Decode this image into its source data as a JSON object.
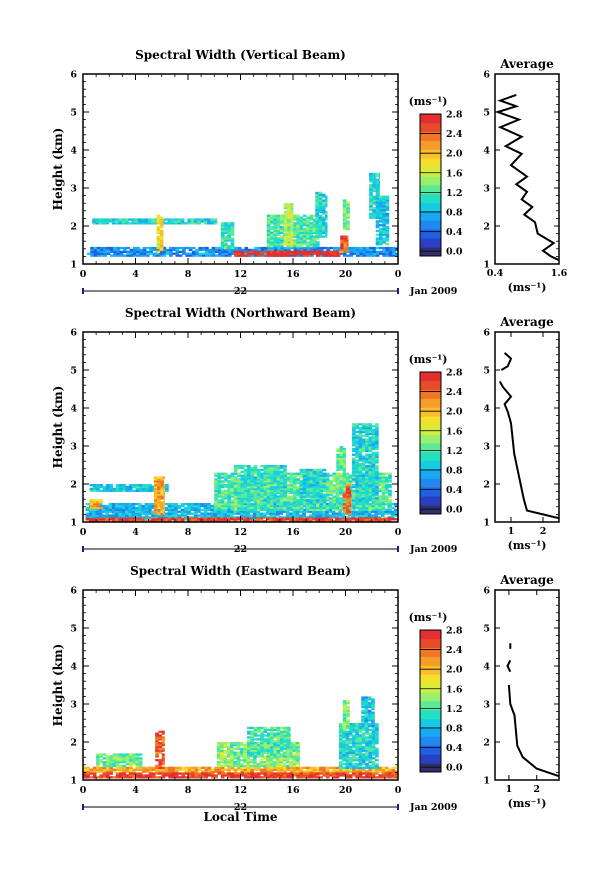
{
  "chart_data": [
    {
      "type": "heatmap",
      "title": "Spectral Width (Vertical Beam)",
      "ylabel": "Height (km)",
      "xlabel": "",
      "x_ticks": [
        "0",
        "4",
        "8",
        "12",
        "16",
        "20",
        "0"
      ],
      "y_ticks": [
        "1",
        "2",
        "3",
        "4",
        "5",
        "6"
      ],
      "xlim": [
        0,
        24
      ],
      "ylim": [
        1,
        6
      ],
      "date_day": "22",
      "date_label": "Jan 2009",
      "colorbar": {
        "unit": "(ms⁻¹)",
        "ticks": [
          "0.0",
          "0.4",
          "0.8",
          "1.2",
          "1.6",
          "2.0",
          "2.4",
          "2.8"
        ],
        "range": [
          0,
          2.9
        ]
      },
      "regions": [
        {
          "x": [
            0.3,
            24
          ],
          "y": [
            1.2,
            1.45
          ],
          "value": 0.7
        },
        {
          "x": [
            0.7,
            10.2
          ],
          "y": [
            2.05,
            2.2
          ],
          "value": 1.1
        },
        {
          "x": [
            5.6,
            6.1
          ],
          "y": [
            1.3,
            2.3
          ],
          "value": 1.9
        },
        {
          "x": [
            10.5,
            11.5
          ],
          "y": [
            1.4,
            2.1
          ],
          "value": 1.2
        },
        {
          "x": [
            11.5,
            19.6
          ],
          "y": [
            1.2,
            1.35
          ],
          "value": 2.9
        },
        {
          "x": [
            14,
            18
          ],
          "y": [
            1.45,
            2.3
          ],
          "value": 1.3
        },
        {
          "x": [
            15.3,
            16
          ],
          "y": [
            1.5,
            2.6
          ],
          "value": 1.7
        },
        {
          "x": [
            17.7,
            18.6
          ],
          "y": [
            1.7,
            2.9
          ],
          "value": 1.1
        },
        {
          "x": [
            19.6,
            20.2
          ],
          "y": [
            1.3,
            1.75
          ],
          "value": 2.6
        },
        {
          "x": [
            19.8,
            20.3
          ],
          "y": [
            1.9,
            2.7
          ],
          "value": 1.4
        },
        {
          "x": [
            21.8,
            22.6
          ],
          "y": [
            2.2,
            3.4
          ],
          "value": 1.1
        },
        {
          "x": [
            22.3,
            23.3
          ],
          "y": [
            1.5,
            2.8
          ],
          "value": 1.0
        }
      ],
      "average": {
        "title": "Average",
        "x_ticks": [
          "0.4",
          "1.6"
        ],
        "xlim": [
          0.4,
          1.6
        ],
        "ylim": [
          1,
          6
        ],
        "y_ticks": [
          "1",
          "2",
          "3",
          "4",
          "5",
          "6"
        ],
        "xlabel": "(ms⁻¹)",
        "profile": [
          {
            "x": 1.6,
            "y": 1.1
          },
          {
            "x": 1.45,
            "y": 1.2
          },
          {
            "x": 1.3,
            "y": 1.35
          },
          {
            "x": 1.5,
            "y": 1.55
          },
          {
            "x": 1.2,
            "y": 1.8
          },
          {
            "x": 1.15,
            "y": 2.1
          },
          {
            "x": 0.95,
            "y": 2.3
          },
          {
            "x": 1.1,
            "y": 2.5
          },
          {
            "x": 0.9,
            "y": 2.7
          },
          {
            "x": 1.0,
            "y": 2.9
          },
          {
            "x": 0.8,
            "y": 3.1
          },
          {
            "x": 1.0,
            "y": 3.3
          },
          {
            "x": 0.7,
            "y": 3.6
          },
          {
            "x": 0.9,
            "y": 3.9
          },
          {
            "x": 0.6,
            "y": 4.1
          },
          {
            "x": 0.9,
            "y": 4.35
          },
          {
            "x": 0.5,
            "y": 4.6
          },
          {
            "x": 0.85,
            "y": 4.8
          },
          {
            "x": 0.45,
            "y": 5.0
          },
          {
            "x": 0.8,
            "y": 5.15
          },
          {
            "x": 0.5,
            "y": 5.3
          },
          {
            "x": 0.8,
            "y": 5.45
          }
        ]
      }
    },
    {
      "type": "heatmap",
      "title": "Spectral Width (Northward Beam)",
      "ylabel": "Height (km)",
      "xlabel": "",
      "x_ticks": [
        "0",
        "4",
        "8",
        "12",
        "16",
        "20",
        "0"
      ],
      "y_ticks": [
        "1",
        "2",
        "3",
        "4",
        "5",
        "6"
      ],
      "xlim": [
        0,
        24
      ],
      "ylim": [
        1,
        6
      ],
      "date_day": "22",
      "date_label": "Jan 2009",
      "colorbar": {
        "unit": "(ms⁻¹)",
        "ticks": [
          "0.0",
          "0.4",
          "0.8",
          "1.2",
          "1.6",
          "2.0",
          "2.4",
          "2.8"
        ],
        "range": [
          0,
          2.9
        ]
      },
      "regions": [
        {
          "x": [
            0.2,
            24
          ],
          "y": [
            1.05,
            1.5
          ],
          "value": 0.9
        },
        {
          "x": [
            0.2,
            24
          ],
          "y": [
            1.0,
            1.12
          ],
          "value": 2.7
        },
        {
          "x": [
            0.5,
            6.5
          ],
          "y": [
            1.8,
            2.0
          ],
          "value": 1.0
        },
        {
          "x": [
            0.5,
            1.5
          ],
          "y": [
            1.35,
            1.6
          ],
          "value": 2.2
        },
        {
          "x": [
            5.4,
            6.2
          ],
          "y": [
            1.2,
            2.2
          ],
          "value": 2.2
        },
        {
          "x": [
            10,
            23.5
          ],
          "y": [
            1.3,
            2.3
          ],
          "value": 1.3
        },
        {
          "x": [
            11.5,
            15.5
          ],
          "y": [
            1.5,
            2.5
          ],
          "value": 1.2
        },
        {
          "x": [
            16.5,
            18.5
          ],
          "y": [
            1.5,
            2.4
          ],
          "value": 1.1
        },
        {
          "x": [
            19.8,
            20.4
          ],
          "y": [
            1.2,
            2.0
          ],
          "value": 2.5
        },
        {
          "x": [
            20.5,
            22.5
          ],
          "y": [
            1.5,
            3.6
          ],
          "value": 1.1
        },
        {
          "x": [
            19.3,
            20.0
          ],
          "y": [
            1.8,
            3.0
          ],
          "value": 1.4
        }
      ],
      "average": {
        "title": "Average",
        "x_ticks": [
          "1",
          "2"
        ],
        "xlim": [
          0.5,
          2.5
        ],
        "ylim": [
          1,
          6
        ],
        "y_ticks": [
          "1",
          "2",
          "3",
          "4",
          "5",
          "6"
        ],
        "xlabel": "(ms⁻¹)",
        "profile": [
          {
            "x": 2.5,
            "y": 1.1
          },
          {
            "x": 2.0,
            "y": 1.2
          },
          {
            "x": 1.5,
            "y": 1.3
          },
          {
            "x": 1.4,
            "y": 1.6
          },
          {
            "x": 1.3,
            "y": 2.0
          },
          {
            "x": 1.2,
            "y": 2.4
          },
          {
            "x": 1.1,
            "y": 2.8
          },
          {
            "x": 1.05,
            "y": 3.2
          },
          {
            "x": 1.0,
            "y": 3.6
          },
          {
            "x": 0.9,
            "y": 3.9
          },
          {
            "x": 0.8,
            "y": 4.1
          },
          {
            "x": 1.0,
            "y": 4.3
          },
          {
            "x": 0.75,
            "y": 4.55
          },
          {
            "x": 0.65,
            "y": 4.7
          }
        ],
        "profile2": [
          {
            "x": 0.7,
            "y": 5.0
          },
          {
            "x": 0.9,
            "y": 5.1
          },
          {
            "x": 1.0,
            "y": 5.3
          },
          {
            "x": 0.8,
            "y": 5.45
          }
        ]
      }
    },
    {
      "type": "heatmap",
      "title": "Spectral Width (Eastward Beam)",
      "ylabel": "Height (km)",
      "xlabel": "Local Time",
      "x_ticks": [
        "0",
        "4",
        "8",
        "12",
        "16",
        "20",
        "0"
      ],
      "y_ticks": [
        "1",
        "2",
        "3",
        "4",
        "5",
        "6"
      ],
      "xlim": [
        0,
        24
      ],
      "ylim": [
        1,
        6
      ],
      "date_day": "22",
      "date_label": "Jan 2009",
      "colorbar": {
        "unit": "(ms⁻¹)",
        "ticks": [
          "0.0",
          "0.4",
          "0.8",
          "1.2",
          "1.6",
          "2.0",
          "2.4",
          "2.8"
        ],
        "range": [
          0,
          2.9
        ]
      },
      "regions": [
        {
          "x": [
            0,
            24
          ],
          "y": [
            1.2,
            1.35
          ],
          "value": 2.2
        },
        {
          "x": [
            0,
            24
          ],
          "y": [
            1.05,
            1.2
          ],
          "value": 2.7
        },
        {
          "x": [
            1.0,
            4.5
          ],
          "y": [
            1.35,
            1.7
          ],
          "value": 1.4
        },
        {
          "x": [
            5.5,
            6.2
          ],
          "y": [
            1.3,
            2.3
          ],
          "value": 2.6
        },
        {
          "x": [
            10.2,
            16.5
          ],
          "y": [
            1.35,
            2.0
          ],
          "value": 1.5
        },
        {
          "x": [
            12.5,
            15.8
          ],
          "y": [
            1.6,
            2.4
          ],
          "value": 1.3
        },
        {
          "x": [
            19.5,
            22.5
          ],
          "y": [
            1.3,
            2.5
          ],
          "value": 1.1
        },
        {
          "x": [
            19.8,
            20.3
          ],
          "y": [
            2.3,
            3.1
          ],
          "value": 1.4
        },
        {
          "x": [
            21.2,
            22.2
          ],
          "y": [
            2.4,
            3.2
          ],
          "value": 1.0
        }
      ],
      "average": {
        "title": "Average",
        "x_ticks": [
          "1",
          "2"
        ],
        "xlim": [
          0.5,
          2.8
        ],
        "ylim": [
          1,
          6
        ],
        "y_ticks": [
          "1",
          "2",
          "3",
          "4",
          "5",
          "6"
        ],
        "xlabel": "(ms⁻¹)",
        "profile": [
          {
            "x": 2.8,
            "y": 1.1
          },
          {
            "x": 2.0,
            "y": 1.3
          },
          {
            "x": 1.5,
            "y": 1.6
          },
          {
            "x": 1.3,
            "y": 1.9
          },
          {
            "x": 1.25,
            "y": 2.3
          },
          {
            "x": 1.2,
            "y": 2.7
          },
          {
            "x": 1.05,
            "y": 3.0
          },
          {
            "x": 1.0,
            "y": 3.5
          }
        ],
        "profile2": [
          {
            "x": 1.05,
            "y": 3.85
          },
          {
            "x": 0.95,
            "y": 4.0
          },
          {
            "x": 1.05,
            "y": 4.15
          }
        ],
        "profile3": [
          {
            "x": 1.05,
            "y": 4.45
          },
          {
            "x": 1.05,
            "y": 4.6
          }
        ]
      }
    }
  ]
}
